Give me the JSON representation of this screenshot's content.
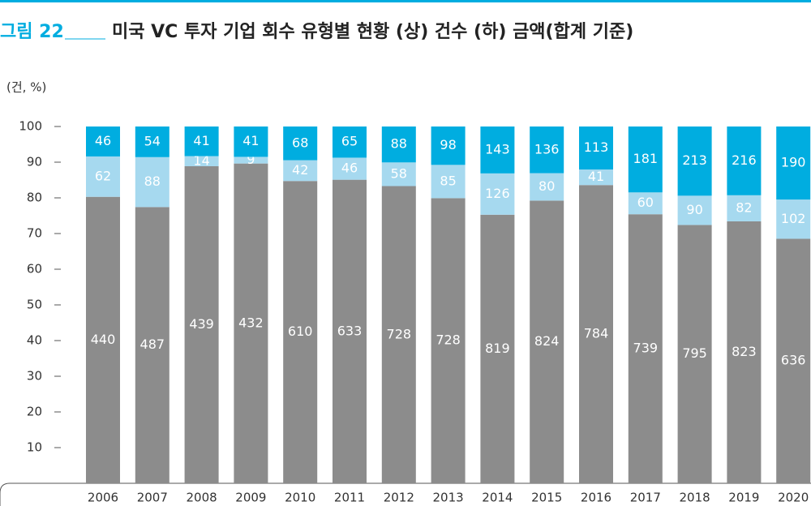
{
  "chart_data": {
    "type": "bar",
    "stacking": "percent",
    "figure_label": "그림 22",
    "title": "미국 VC 투자 기업 회수 유형별 현황 (상) 건수 (하) 금액(합계 기준)",
    "y_label": "(건, %)",
    "categories": [
      "2006",
      "2007",
      "2008",
      "2009",
      "2010",
      "2011",
      "2012",
      "2013",
      "2014",
      "2015",
      "2016",
      "2017",
      "2018",
      "2019",
      "2020"
    ],
    "series": [
      {
        "color": "#8c8c8c",
        "values": [
          440,
          487,
          439,
          432,
          610,
          633,
          728,
          728,
          819,
          824,
          784,
          739,
          795,
          823,
          636
        ]
      },
      {
        "color": "#a6d9ef",
        "values": [
          62,
          88,
          14,
          9,
          42,
          46,
          58,
          85,
          126,
          80,
          41,
          60,
          90,
          82,
          102
        ]
      },
      {
        "color": "#00ade0",
        "values": [
          46,
          54,
          41,
          41,
          68,
          65,
          88,
          98,
          143,
          136,
          113,
          181,
          213,
          216,
          190
        ]
      }
    ],
    "ylim": [
      0,
      100
    ],
    "yticks": [
      10,
      20,
      30,
      40,
      50,
      60,
      70,
      80,
      90,
      100
    ]
  }
}
